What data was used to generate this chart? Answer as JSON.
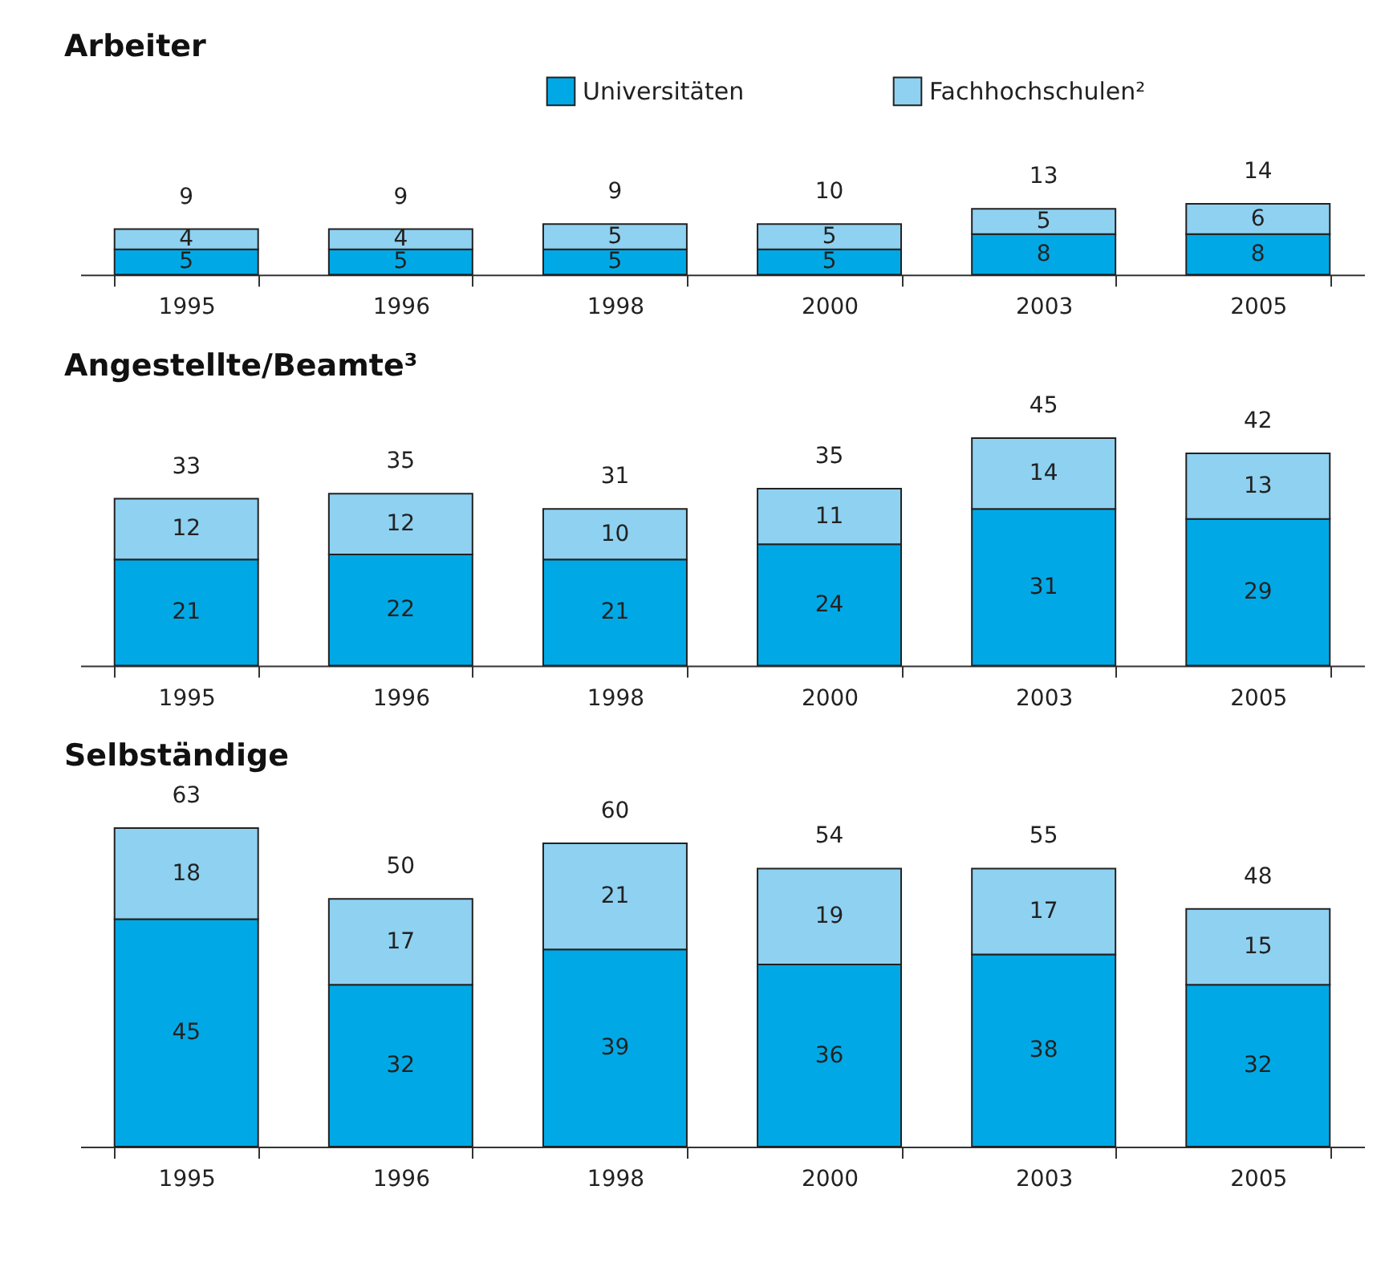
{
  "chart_data": [
    {
      "type": "bar",
      "title": "Arbeiter",
      "stacked": true,
      "data_labels": true,
      "legend": "top right",
      "categories": [
        "1995",
        "1996",
        "1998",
        "2000",
        "2003",
        "2005"
      ],
      "series": [
        {
          "name": "Universitäten",
          "color": "#00a9e6",
          "values": [
            5,
            5,
            5,
            5,
            8,
            8
          ]
        },
        {
          "name": "Fachhochschulen²",
          "color": "#8fd1f1",
          "values": [
            4,
            4,
            5,
            5,
            5,
            6
          ]
        }
      ],
      "totals": [
        "9",
        "9",
        "9",
        "10",
        "13",
        "14"
      ]
    },
    {
      "type": "bar",
      "title": "Angestellte/Beamte³",
      "stacked": true,
      "data_labels": true,
      "categories": [
        "1995",
        "1996",
        "1998",
        "2000",
        "2003",
        "2005"
      ],
      "series": [
        {
          "color": "#00a9e6",
          "values": [
            21,
            22,
            21,
            24,
            31,
            29
          ]
        },
        {
          "color": "#8fd1f1",
          "values": [
            12,
            12,
            10,
            11,
            14,
            13
          ]
        }
      ],
      "totals": [
        "33",
        "35",
        "31",
        "35",
        "45",
        "42"
      ]
    },
    {
      "type": "bar",
      "title": "Selbständige",
      "stacked": true,
      "data_labels": true,
      "categories": [
        "1995",
        "1996",
        "1998",
        "2000",
        "2003",
        "2005"
      ],
      "series": [
        {
          "color": "#00a9e6",
          "values": [
            45,
            32,
            39,
            36,
            38,
            32
          ]
        },
        {
          "color": "#8fd1f1",
          "values": [
            18,
            17,
            21,
            19,
            17,
            15
          ]
        }
      ],
      "totals": [
        "63",
        "50",
        "60",
        "54",
        "55",
        "48"
      ]
    }
  ]
}
